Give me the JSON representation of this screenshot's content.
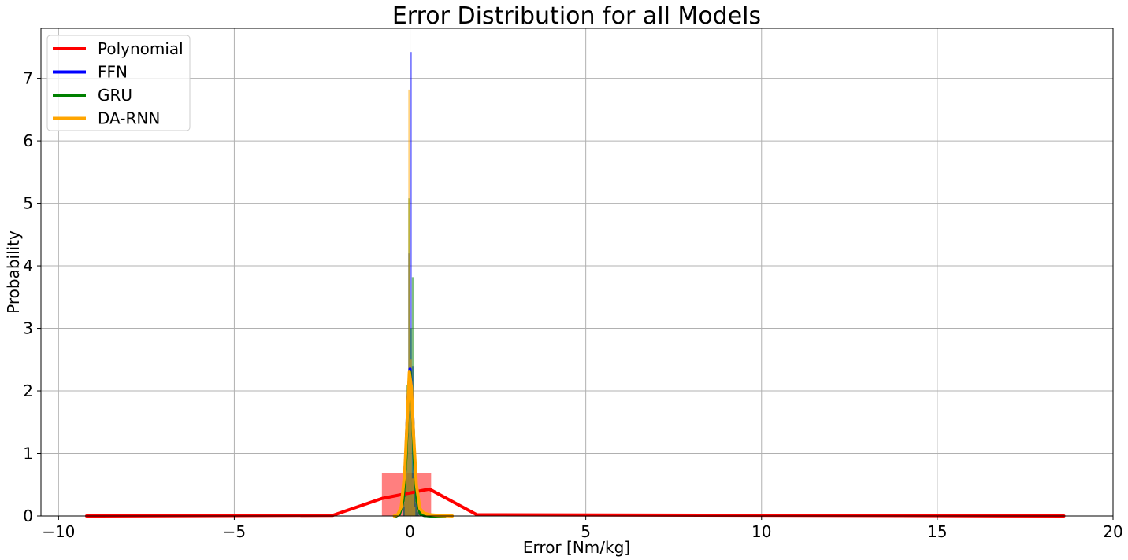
{
  "chart_data": {
    "type": "histogram_with_density_lines",
    "title": "Error Distribution for all Models",
    "xlabel": "Error [Nm/kg]",
    "ylabel": "Probability",
    "xlim": [
      -10.5,
      20
    ],
    "ylim": [
      0,
      7.8
    ],
    "xticks": [
      -10,
      -5,
      0,
      5,
      10,
      15,
      20
    ],
    "xtick_labels": [
      "−10",
      "−5",
      "0",
      "5",
      "10",
      "15",
      "20"
    ],
    "yticks": [
      0,
      1,
      2,
      3,
      4,
      5,
      6,
      7
    ],
    "ytick_labels": [
      "0",
      "1",
      "2",
      "3",
      "4",
      "5",
      "6",
      "7"
    ],
    "grid": true,
    "legend_position": "top-left",
    "series": [
      {
        "name": "Polynomial",
        "color": "#ff0000",
        "line": {
          "x": [
            -9.2,
            -2.2,
            -0.8,
            0.55,
            1.9,
            18.6
          ],
          "y": [
            0.0,
            0.01,
            0.28,
            0.43,
            0.02,
            0.0
          ]
        },
        "hist": {
          "edges": [
            -0.8,
            0.6
          ],
          "values": [
            0.69
          ]
        }
      },
      {
        "name": "FFN",
        "color": "#0000ff",
        "line": {
          "x": [
            -0.4,
            -0.3,
            -0.2,
            -0.12,
            -0.06,
            0.0,
            0.06,
            0.12,
            0.2,
            0.3,
            0.4,
            0.6,
            1.0
          ],
          "y": [
            0.0,
            0.03,
            0.25,
            0.95,
            1.85,
            2.35,
            1.85,
            0.95,
            0.25,
            0.03,
            0.01,
            0.0,
            0.0
          ]
        },
        "hist": {
          "edges": [
            -0.2,
            -0.15,
            -0.1,
            -0.05,
            0.0,
            0.05,
            0.1,
            0.15,
            0.2,
            0.25
          ],
          "values": [
            0.15,
            0.4,
            1.6,
            4.2,
            7.42,
            2.4,
            0.7,
            0.2,
            0.06
          ]
        }
      },
      {
        "name": "GRU",
        "color": "#008000",
        "line": {
          "x": [
            -0.4,
            -0.3,
            -0.2,
            -0.12,
            -0.06,
            0.0,
            0.06,
            0.12,
            0.2,
            0.3,
            0.4,
            0.6,
            1.0
          ],
          "y": [
            0.0,
            0.03,
            0.24,
            0.9,
            1.8,
            2.3,
            1.8,
            0.9,
            0.24,
            0.03,
            0.01,
            0.0,
            0.0
          ]
        },
        "hist": {
          "edges": [
            -0.2,
            -0.15,
            -0.1,
            -0.05,
            0.0,
            0.05,
            0.1,
            0.15,
            0.2,
            0.25
          ],
          "values": [
            0.2,
            0.6,
            2.1,
            5.08,
            3.0,
            3.82,
            0.8,
            0.25,
            0.08
          ]
        }
      },
      {
        "name": "DA-RNN",
        "color": "#ffa500",
        "line": {
          "x": [
            -0.45,
            -0.35,
            -0.25,
            -0.15,
            -0.08,
            -0.02,
            0.04,
            0.1,
            0.18,
            0.28,
            0.38,
            0.55,
            0.8,
            1.2
          ],
          "y": [
            0.0,
            0.02,
            0.15,
            0.7,
            1.55,
            2.3,
            2.05,
            1.3,
            0.5,
            0.12,
            0.05,
            0.02,
            0.01,
            0.0
          ]
        },
        "hist": {
          "edges": [
            -0.15,
            -0.1,
            -0.05,
            0.0,
            0.05,
            0.1,
            0.15
          ],
          "values": [
            0.3,
            1.8,
            6.82,
            2.5,
            0.6,
            0.15
          ]
        }
      }
    ]
  }
}
